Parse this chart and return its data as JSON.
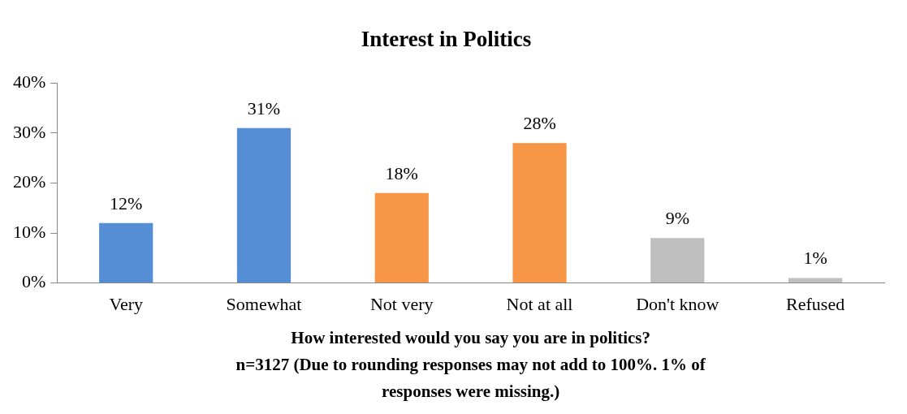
{
  "chart_data": {
    "type": "bar",
    "title": "Interest in Politics",
    "categories": [
      "Very",
      "Somewhat",
      "Not very",
      "Not at all",
      "Don't know",
      "Refused"
    ],
    "values": [
      12,
      31,
      18,
      28,
      9,
      1
    ],
    "colors": [
      "#558ed5",
      "#558ed5",
      "#f79646",
      "#f79646",
      "#bfbfbf",
      "#bfbfbf"
    ],
    "value_labels": [
      "12%",
      "31%",
      "18%",
      "28%",
      "9%",
      "1%"
    ],
    "ylim": [
      0,
      40
    ],
    "yticks": [
      {
        "value": 0,
        "label": "0%"
      },
      {
        "value": 10,
        "label": "10%"
      },
      {
        "value": 20,
        "label": "20%"
      },
      {
        "value": 30,
        "label": "30%"
      },
      {
        "value": 40,
        "label": "40%"
      }
    ],
    "grid": false,
    "legend": false,
    "xlabel": "How interested would you say you are in politics?",
    "annotations": [
      "n=3127 (Due to rounding responses may not add to 100%. 1% of",
      "responses were missing.)"
    ]
  }
}
